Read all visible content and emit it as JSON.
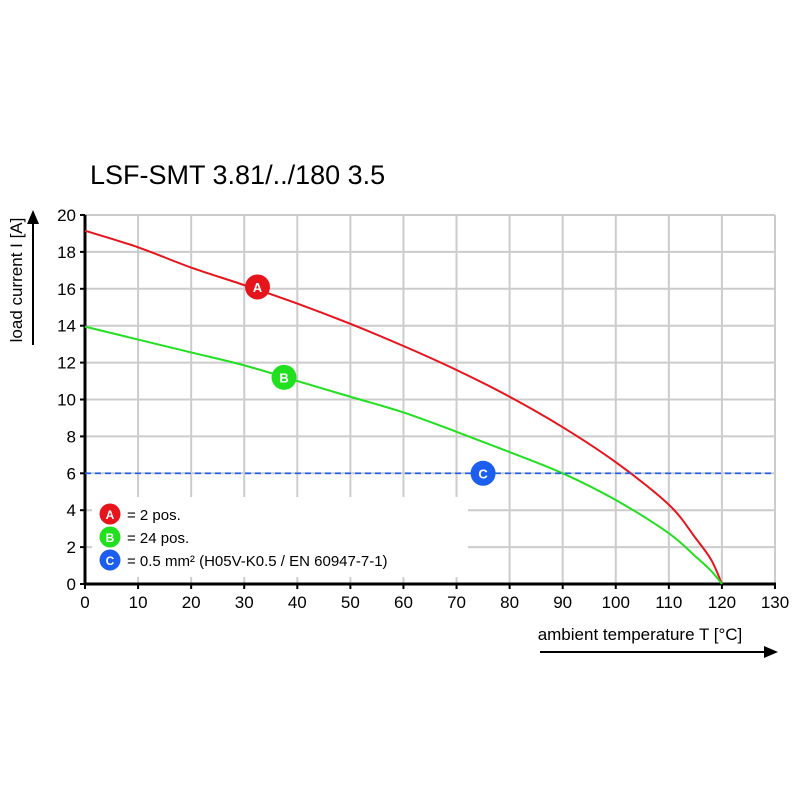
{
  "chart_data": {
    "type": "line",
    "title": "LSF-SMT 3.81/../180 3.5",
    "xlabel": "ambient temperature T [°C]",
    "ylabel": "load current I [A]",
    "xlim": [
      0,
      130
    ],
    "ylim": [
      0,
      20
    ],
    "xticks": [
      0,
      10,
      20,
      30,
      40,
      50,
      60,
      70,
      80,
      90,
      100,
      110,
      120,
      130
    ],
    "yticks": [
      0,
      2,
      4,
      6,
      8,
      10,
      12,
      14,
      16,
      18,
      20
    ],
    "grid": true,
    "legend_placement": "bottom-left",
    "series": [
      {
        "marker": "A",
        "name": "= 2 pos.",
        "color": "#e8141c",
        "x": [
          0,
          10,
          20,
          30,
          40,
          50,
          60,
          70,
          80,
          90,
          100,
          110,
          115,
          118,
          120
        ],
        "y": [
          19.15,
          18.25,
          17.15,
          16.2,
          15.2,
          14.1,
          12.9,
          11.6,
          10.15,
          8.5,
          6.6,
          4.3,
          2.5,
          1.3,
          0
        ],
        "label_at": [
          32.5,
          16.1
        ]
      },
      {
        "marker": "B",
        "name": "= 24 pos.",
        "color": "#21e01f",
        "x": [
          0,
          10,
          20,
          30,
          40,
          50,
          60,
          70,
          80,
          90,
          100,
          110,
          115,
          118,
          120
        ],
        "y": [
          13.95,
          13.25,
          12.55,
          11.85,
          11.0,
          10.15,
          9.3,
          8.25,
          7.15,
          6.0,
          4.55,
          2.75,
          1.5,
          0.7,
          0
        ],
        "label_at": [
          37.5,
          11.2
        ]
      },
      {
        "marker": "C",
        "name": "= 0.5 mm² (H05V-K0.5 / EN 60947-7-1)",
        "color": "#1b5ef0",
        "style": "dashed",
        "x": [
          0,
          130
        ],
        "y": [
          6,
          6
        ],
        "label_at": [
          75,
          6
        ]
      }
    ]
  }
}
